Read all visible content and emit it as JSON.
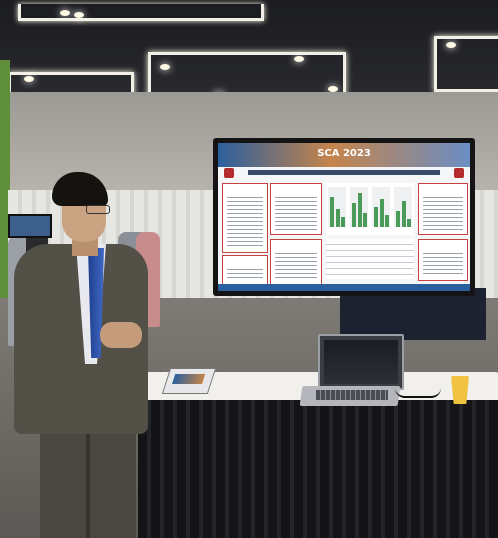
{
  "scene": {
    "type": "photo",
    "description_hidden": false
  },
  "monitor": {
    "banner_title": "SCA 2023"
  },
  "colors": {
    "banner_blue": "#2c5f9e",
    "poster_border_red": "#c84040",
    "table_cloth": "#f1f0ec",
    "jacket": "#535048"
  }
}
